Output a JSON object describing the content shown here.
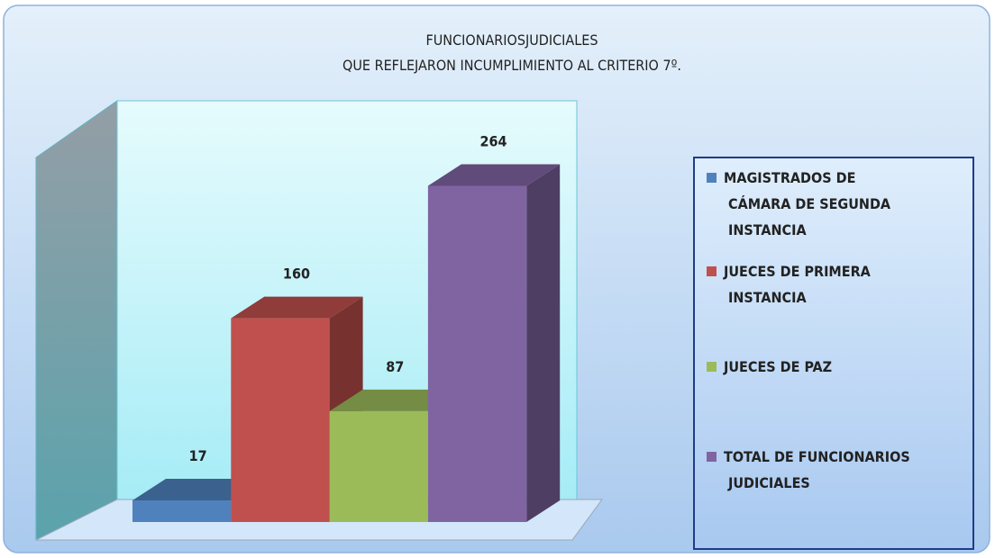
{
  "chart_data": {
    "type": "bar",
    "title": "FUNCIONARIOSJUDICIALES",
    "subtitle": "QUE REFLEJARON INCUMPLIMIENTO AL CRITERIO 7º.",
    "ylim": [
      0,
      300
    ],
    "series": [
      {
        "name": "MAGISTRADOS DE\nCÁMARA DE SEGUNDA\nINSTANCIA",
        "color": "#4f81bd",
        "values": [
          17
        ]
      },
      {
        "name": "JUECES DE PRIMERA\nINSTANCIA",
        "color": "#c0504d",
        "values": [
          160
        ]
      },
      {
        "name": "JUECES DE PAZ",
        "color": "#9bbb59",
        "values": [
          87
        ]
      },
      {
        "name": "TOTAL DE FUNCIONARIOS\nJUDICIALES",
        "color": "#8064a2",
        "values": [
          264
        ]
      }
    ]
  }
}
